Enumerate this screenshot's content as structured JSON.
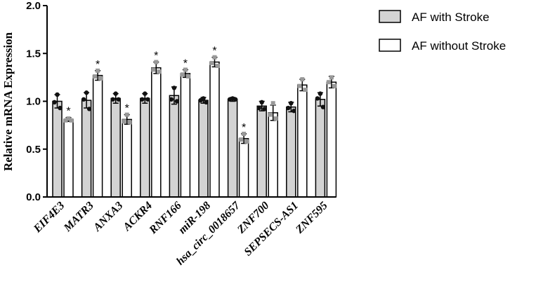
{
  "chart_data": {
    "type": "bar",
    "title": "",
    "xlabel": "",
    "ylabel": "Relative mRNA Expression",
    "ylim": [
      0,
      2.0
    ],
    "yticks": [
      "0.0",
      "0.5",
      "1.0",
      "1.5",
      "2.0"
    ],
    "legend_position": "top-right",
    "categories": [
      "EIF4E3",
      "MATR3",
      "ANXA3",
      "ACKR4",
      "RNF166",
      "miR-198",
      "hsa_circ_0018657",
      "ZNF700",
      "SEPSECS-AS1",
      "ZNF595"
    ],
    "series": [
      {
        "name": "AF with Stroke",
        "fill": "#d3d3d3",
        "point_color": "#111111",
        "values": [
          1.0,
          1.01,
          1.03,
          1.03,
          1.06,
          1.01,
          1.02,
          0.95,
          0.94,
          1.02
        ],
        "errors": [
          0.07,
          0.08,
          0.05,
          0.05,
          0.09,
          0.03,
          0.02,
          0.05,
          0.05,
          0.07
        ],
        "points": [
          [
            1.07,
            0.99,
            0.93
          ],
          [
            1.09,
            1.02,
            0.92
          ],
          [
            1.08,
            1.02,
            1.02
          ],
          [
            1.08,
            1.02,
            1.02
          ],
          [
            1.14,
            1.02,
            1.0
          ],
          [
            1.03,
            1.01,
            0.99
          ],
          [
            1.03,
            1.02,
            1.02
          ],
          [
            0.99,
            0.93,
            0.92
          ],
          [
            0.98,
            0.93,
            0.9
          ],
          [
            1.08,
            1.03,
            0.94
          ]
        ],
        "stars": [
          false,
          false,
          false,
          false,
          false,
          false,
          false,
          false,
          false,
          false
        ]
      },
      {
        "name": "AF without Stroke",
        "fill": "#ffffff",
        "point_color": "#999999",
        "values": [
          0.81,
          1.27,
          0.81,
          1.35,
          1.29,
          1.41,
          0.61,
          0.88,
          1.17,
          1.2
        ],
        "errors": [
          0.02,
          0.05,
          0.05,
          0.06,
          0.04,
          0.05,
          0.05,
          0.08,
          0.06,
          0.06
        ],
        "points": [
          [
            0.82,
            0.8,
            0.8
          ],
          [
            1.32,
            1.26,
            1.24
          ],
          [
            0.86,
            0.79,
            0.78
          ],
          [
            1.41,
            1.33,
            1.31
          ],
          [
            1.33,
            1.28,
            1.26
          ],
          [
            1.46,
            1.4,
            1.37
          ],
          [
            0.66,
            0.6,
            0.58
          ],
          [
            0.98,
            0.86,
            0.82
          ],
          [
            1.23,
            1.16,
            1.12
          ],
          [
            1.25,
            1.2,
            1.16
          ]
        ],
        "stars": [
          true,
          true,
          true,
          true,
          true,
          true,
          true,
          false,
          false,
          false
        ]
      }
    ],
    "significance_mark": "*"
  }
}
